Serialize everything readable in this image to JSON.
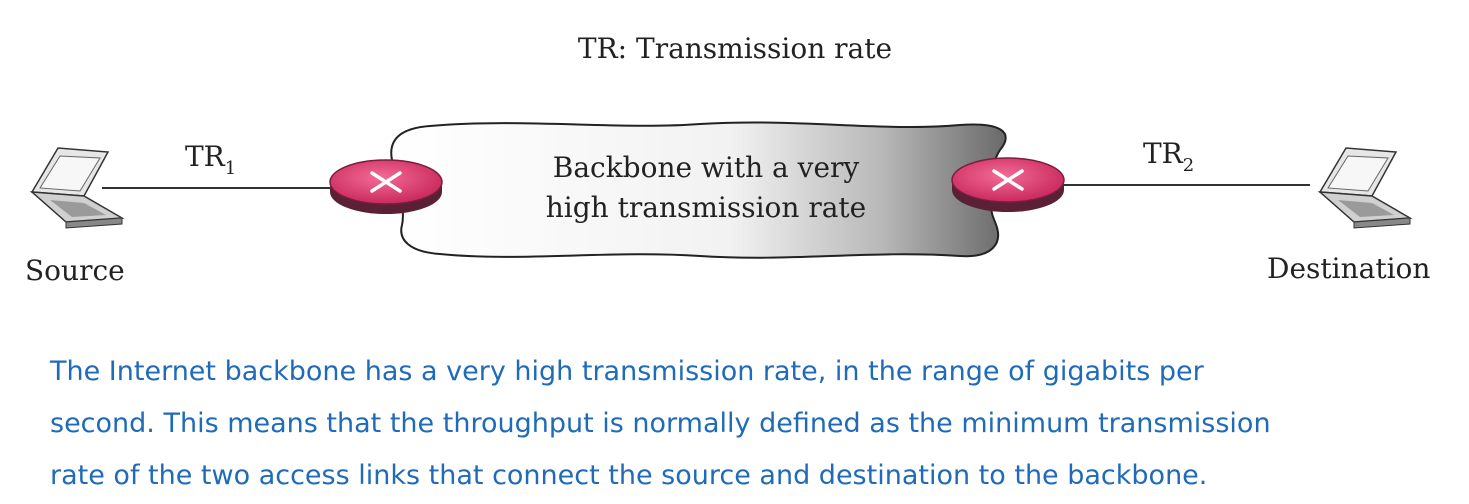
{
  "diagram": {
    "title": "TR: Transmission rate",
    "link_left": {
      "label": "TR",
      "subscript": "1"
    },
    "link_right": {
      "label": "TR",
      "subscript": "2"
    },
    "cloud": {
      "line1": "Backbone with a very",
      "line2": "high transmission rate"
    },
    "source_label": "Source",
    "destination_label": "Destination",
    "icons": {
      "source": "laptop-icon",
      "destination": "laptop-icon",
      "left_router": "router-icon",
      "right_router": "router-icon"
    },
    "colors": {
      "router_top": "#d6336b",
      "router_side": "#5a2035",
      "text": "#1f6bb8"
    }
  },
  "caption": {
    "lines": [
      "The Internet backbone has a very high transmission rate, in the range of gigabits per",
      "second. This means that the throughput is normally defined as the minimum transmission",
      "rate of the two access links that connect the source and destination to the backbone."
    ]
  }
}
